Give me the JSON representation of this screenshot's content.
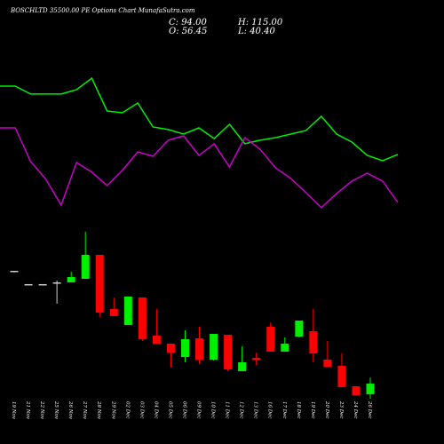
{
  "chart_data": [
    {
      "type": "line",
      "title": "BOSCHLTD 35500.00 PE Options Chart MunafaSutra.com",
      "ylim": [
        0,
        100
      ],
      "series": [
        {
          "color": "#00ee00",
          "values": [
            89.4,
            89.4,
            83.8,
            83.8,
            83.8,
            86.9,
            95,
            71.9,
            70.6,
            77.5,
            60.6,
            58.8,
            55.6,
            60,
            52.5,
            62.5,
            48.8,
            51.3,
            53.1,
            55.6,
            58.1,
            68.1,
            55.6,
            50,
            40.6,
            36.9,
            41.3
          ]
        },
        {
          "color": "#cc00cc",
          "values": [
            60,
            60,
            36.3,
            23.8,
            5.6,
            35.6,
            28.8,
            19.4,
            30,
            43.1,
            40,
            51.3,
            54.4,
            40.6,
            48.8,
            32.5,
            53.1,
            45,
            31.9,
            24.4,
            14.4,
            3.8,
            13.8,
            22.5,
            28.1,
            22.5,
            7.5
          ]
        }
      ]
    },
    {
      "type": "candlestick",
      "annotations": [
        "C: 94.00",
        "H: 115.00",
        "O: 56.45",
        "L: 40.40"
      ],
      "categories": [
        "19 Nov",
        "21 Nov",
        "22 Nov",
        "25 Nov",
        "26 Nov",
        "27 Nov",
        "28 Nov",
        "29 Nov",
        "02 Dec",
        "03 Dec",
        "04 Dec",
        "05 Dec",
        "06 Dec",
        "09 Dec",
        "10 Dec",
        "11 Dec",
        "12 Dec",
        "13 Dec",
        "16 Dec",
        "17 Dec",
        "18 Dec",
        "19 Dec",
        "20 Dec",
        "23 Dec",
        "24 Dec",
        "26 Dec"
      ],
      "open": [
        490.6,
        443.8,
        443.8,
        450,
        450,
        462.5,
        546.9,
        356.3,
        300,
        396.9,
        262.5,
        234.4,
        187.5,
        253.1,
        178.1,
        265.6,
        137.5,
        184.4,
        293.8,
        206.3,
        259.4,
        278.1,
        178.1,
        156.3,
        84.4,
        56.45
      ],
      "high": [
        490.6,
        443.8,
        443.8,
        456.3,
        487.5,
        628.1,
        546.9,
        396.9,
        400,
        396.9,
        356.3,
        234.4,
        281.3,
        293.8,
        268.8,
        265.6,
        225,
        203.1,
        309.4,
        256.3,
        315.6,
        356.3,
        243.8,
        200,
        84.4,
        115
      ],
      "low": [
        490.6,
        443.8,
        443.8,
        375,
        450,
        462.5,
        328.1,
        331.3,
        300,
        243.8,
        234.4,
        150,
        168.8,
        162.5,
        175,
        137.5,
        137.5,
        159.4,
        206.3,
        206.3,
        256.3,
        168.8,
        153.1,
        81.3,
        53.1,
        40.4
      ],
      "close": [
        490.6,
        443.8,
        443.8,
        450,
        468.8,
        546.9,
        343.8,
        331.3,
        400,
        250,
        234.4,
        203.1,
        250,
        178.1,
        268.8,
        143.8,
        168.8,
        178.1,
        206.3,
        234.4,
        315.6,
        200,
        153.1,
        81.3,
        53.1,
        94
      ],
      "up_color": "#00ee00",
      "down_color": "#ff0000",
      "flat_color": "#cccccc",
      "ylim": [
        25,
        625
      ]
    }
  ]
}
